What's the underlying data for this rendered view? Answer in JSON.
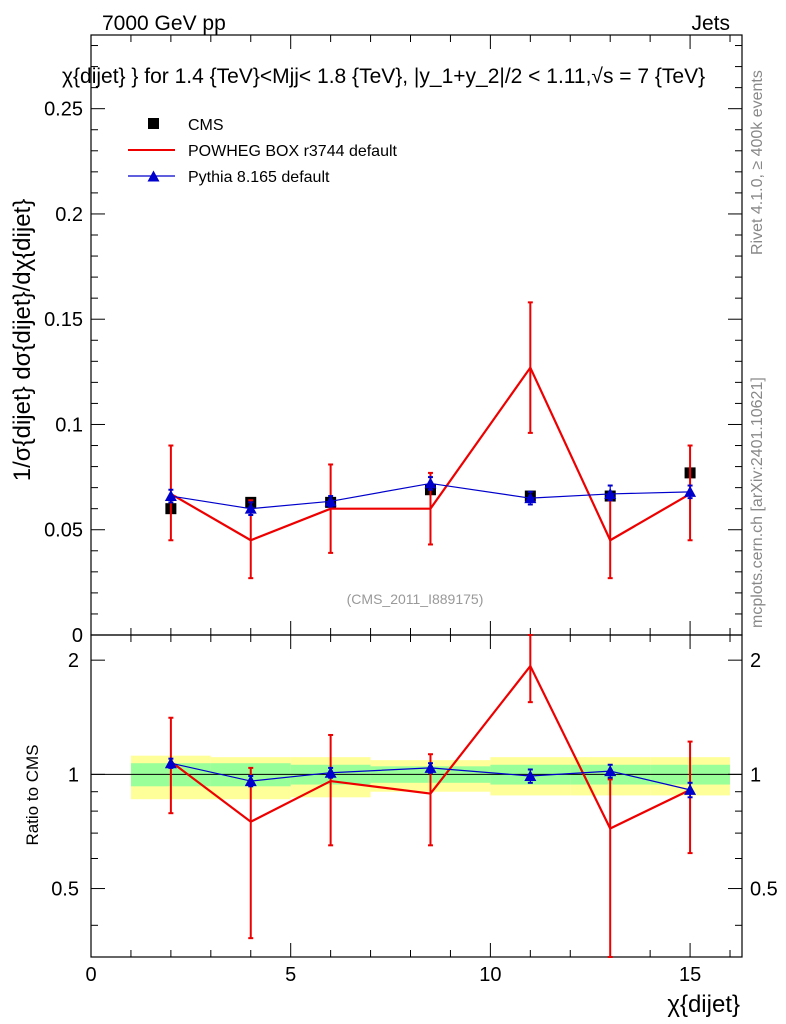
{
  "header": {
    "left": "7000 GeV pp",
    "right": "Jets",
    "title": "χ{dijet} } for 1.4 {TeV}<Mjj< 1.8 {TeV}, |y_1+y_2|/2 < 1.11,√s = 7 {TeV}"
  },
  "side_labels": {
    "rivet": "Rivet 4.1.0, ≥ 400k events",
    "mcplots": "mcplots.cern.ch [arXiv:2401.10621]"
  },
  "analysis_id": "(CMS_2011_I889175)",
  "colors": {
    "cms": "#000000",
    "powheg": "#ee0000",
    "pythia": "#0000cc",
    "band_inner": "#99ff99",
    "band_outer": "#ffff99"
  },
  "chart_data": [
    {
      "type": "scatter",
      "panel": "main",
      "ylabel": "1/σ{dijet} dσ{dijet}/dχ{dijet}",
      "ylim": [
        0,
        0.285
      ],
      "xlim": [
        0,
        16.3
      ],
      "yticks": [
        0,
        0.05,
        0.1,
        0.15,
        0.2,
        0.25
      ],
      "ytick_labels": [
        "0",
        "0.05",
        "0.1",
        "0.15",
        "0.2",
        "0.25"
      ],
      "legend": [
        "CMS",
        "POWHEG BOX r3744 default",
        "Pythia 8.165 default"
      ],
      "bin_edges": [
        1,
        3,
        5,
        7,
        10,
        12,
        14,
        16
      ],
      "x": [
        2,
        4,
        6,
        8.5,
        11,
        13,
        15
      ],
      "series": [
        {
          "name": "CMS",
          "values": [
            0.06,
            0.063,
            0.063,
            0.069,
            0.066,
            0.066,
            0.077
          ]
        },
        {
          "name": "POWHEG BOX r3744 default",
          "values": [
            0.067,
            0.045,
            0.06,
            0.06,
            0.127,
            0.045,
            0.067
          ],
          "err_low": [
            0.045,
            0.027,
            0.039,
            0.043,
            0.096,
            0.027,
            0.045
          ],
          "err_high": [
            0.09,
            0.064,
            0.081,
            0.077,
            0.158,
            0.064,
            0.09
          ]
        },
        {
          "name": "Pythia 8.165 default",
          "values": [
            0.066,
            0.06,
            0.0635,
            0.072,
            0.065,
            0.067,
            0.068
          ],
          "err_low": [
            0.063,
            0.057,
            0.061,
            0.069,
            0.062,
            0.064,
            0.065
          ],
          "err_high": [
            0.069,
            0.063,
            0.066,
            0.075,
            0.068,
            0.071,
            0.071
          ]
        }
      ]
    },
    {
      "type": "line",
      "panel": "ratio",
      "ylabel": "Ratio to CMS",
      "xlabel": "χ{dijet}",
      "ylim": [
        0.33,
        2.33
      ],
      "xlim": [
        0,
        16.3
      ],
      "yticks": [
        0.5,
        1,
        2
      ],
      "ytick_labels": [
        "0.5",
        "1",
        "2"
      ],
      "xticks": [
        0,
        5,
        10,
        15
      ],
      "xtick_labels": [
        "0",
        "5",
        "10",
        "15"
      ],
      "bin_edges": [
        1,
        3,
        5,
        7,
        10,
        12,
        14,
        16
      ],
      "band_inner": [
        [
          0.93,
          1.07
        ],
        [
          0.93,
          1.07
        ],
        [
          0.94,
          1.06
        ],
        [
          0.95,
          1.05
        ],
        [
          0.94,
          1.06
        ],
        [
          0.94,
          1.06
        ],
        [
          0.94,
          1.06
        ]
      ],
      "band_outer": [
        [
          0.86,
          1.12
        ],
        [
          0.86,
          1.11
        ],
        [
          0.87,
          1.11
        ],
        [
          0.9,
          1.09
        ],
        [
          0.88,
          1.11
        ],
        [
          0.88,
          1.11
        ],
        [
          0.88,
          1.11
        ]
      ],
      "x": [
        2,
        4,
        6,
        8.5,
        11,
        13,
        15
      ],
      "series": [
        {
          "name": "POWHEG BOX r3744 default",
          "values": [
            1.08,
            0.75,
            0.96,
            0.89,
            1.93,
            0.72,
            0.91
          ],
          "err_low": [
            0.79,
            0.37,
            0.65,
            0.65,
            1.55,
            0.33,
            0.62
          ],
          "err_high": [
            1.41,
            1.04,
            1.27,
            1.13,
            2.33,
            0.97,
            1.22
          ]
        },
        {
          "name": "Pythia 8.165 default",
          "values": [
            1.07,
            0.96,
            1.01,
            1.04,
            0.99,
            1.02,
            0.91
          ],
          "err_low": [
            1.04,
            0.93,
            0.98,
            1.01,
            0.95,
            0.98,
            0.87
          ],
          "err_high": [
            1.1,
            0.99,
            1.04,
            1.07,
            1.03,
            1.06,
            0.95
          ]
        }
      ]
    }
  ]
}
